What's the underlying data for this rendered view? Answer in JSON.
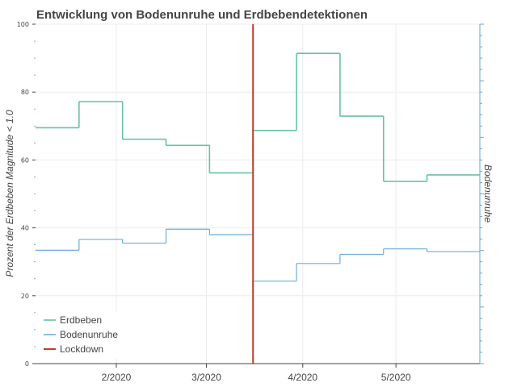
{
  "chart_data": {
    "type": "line",
    "title": "Entwicklung von Bodenunruhe und Erdbebendetektionen",
    "ylabel": "Prozent der Erdbeben Magnitude < 1.0",
    "y2label": "Bodenunruhe",
    "ylim": [
      0,
      100
    ],
    "yticks": [
      0,
      20,
      40,
      60,
      80,
      100
    ],
    "xticks": [
      "2/2020",
      "3/2020",
      "4/2020",
      "5/2020"
    ],
    "xlim": [
      "2020-01-06",
      "2020-05-28"
    ],
    "grid": true,
    "legend_position": "bottom-left",
    "step_edges": [
      "2020-01-06",
      "2020-01-20",
      "2020-02-03",
      "2020-02-17",
      "2020-03-02",
      "2020-03-16",
      "2020-03-30",
      "2020-04-13",
      "2020-04-27",
      "2020-05-11",
      "2020-05-28"
    ],
    "series": [
      {
        "name": "Erdbeben",
        "color": "#66c2a5",
        "values": [
          69.5,
          77.2,
          66.1,
          64.3,
          56.2,
          68.7,
          91.4,
          72.9,
          53.7,
          55.6
        ]
      },
      {
        "name": "Bodenunruhe",
        "color": "#6baed6",
        "values": [
          33.4,
          36.6,
          35.5,
          39.6,
          38.0,
          24.3,
          29.5,
          32.2,
          33.8,
          33.0
        ]
      }
    ],
    "markers": [
      {
        "name": "Lockdown",
        "x": "2020-03-16",
        "color": "#c0392b"
      }
    ]
  }
}
